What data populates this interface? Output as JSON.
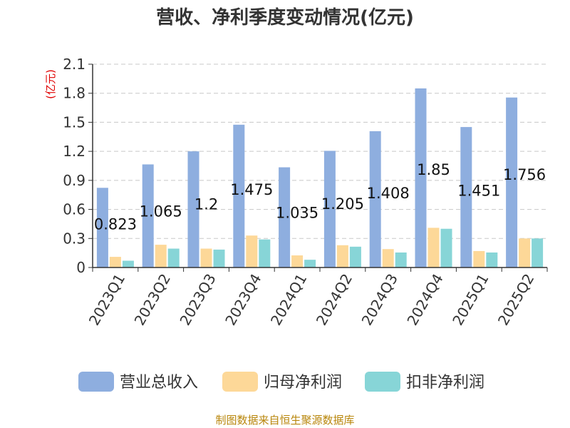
{
  "chart_data": {
    "type": "bar",
    "title": "营收、净利季度变动情况(亿元)",
    "ylabel": "(亿元)",
    "xlabel": "",
    "categories": [
      "2023Q1",
      "2023Q2",
      "2023Q3",
      "2023Q4",
      "2024Q1",
      "2024Q2",
      "2024Q3",
      "2024Q4",
      "2025Q1",
      "2025Q2"
    ],
    "series": [
      {
        "name": "营业总收入",
        "color": "#8eaedf",
        "values": [
          0.823,
          1.065,
          1.2,
          1.475,
          1.035,
          1.205,
          1.408,
          1.85,
          1.451,
          1.756
        ],
        "labels": [
          "0.823",
          "1.065",
          "1.2",
          "1.475",
          "1.035",
          "1.205",
          "1.408",
          "1.85",
          "1.451",
          "1.756"
        ]
      },
      {
        "name": "归母净利润",
        "color": "#fdd898",
        "values": [
          0.11,
          0.235,
          0.195,
          0.33,
          0.125,
          0.23,
          0.19,
          0.41,
          0.17,
          0.3
        ]
      },
      {
        "name": "扣非净利润",
        "color": "#87d5d7",
        "values": [
          0.07,
          0.195,
          0.185,
          0.29,
          0.08,
          0.215,
          0.155,
          0.4,
          0.155,
          0.3
        ]
      }
    ],
    "ylim": [
      0,
      2.1
    ],
    "yticks": [
      "0",
      "0.3",
      "0.6",
      "0.9",
      "1.2",
      "1.5",
      "1.8",
      "2.1"
    ],
    "grid": true,
    "legend_position": "bottom"
  },
  "source_note": "制图数据来自恒生聚源数据库"
}
